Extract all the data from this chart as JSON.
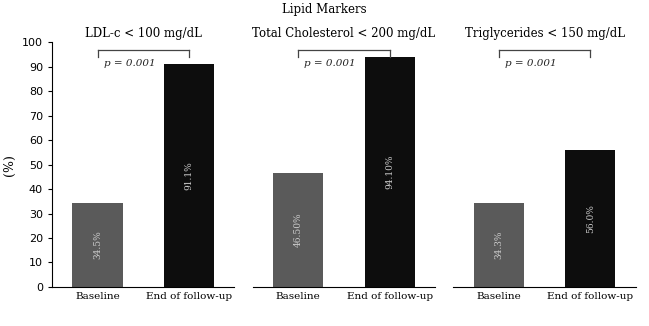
{
  "title": "Lipid Markers",
  "title_fontsize": 8.5,
  "ylabel": "(%)",
  "ylabel_fontsize": 9,
  "ylim": [
    0,
    100
  ],
  "yticks": [
    0,
    10,
    20,
    30,
    40,
    50,
    60,
    70,
    80,
    90,
    100
  ],
  "groups": [
    {
      "subtitle": "LDL-c < 100 mg/dL",
      "baseline_val": 34.5,
      "followup_val": 91.1,
      "baseline_label": "34.5%",
      "followup_label": "91.1%",
      "p_value": "p = 0.001"
    },
    {
      "subtitle": "Total Cholesterol < 200 mg/dL",
      "baseline_val": 46.5,
      "followup_val": 94.1,
      "baseline_label": "46.50%",
      "followup_label": "94.10%",
      "p_value": "p = 0.001"
    },
    {
      "subtitle": "Triglycerides < 150 mg/dL",
      "baseline_val": 34.3,
      "followup_val": 56.0,
      "baseline_label": "34.3%",
      "followup_label": "56.0%",
      "p_value": "p = 0.001"
    }
  ],
  "bar_color_baseline": "#5a5a5a",
  "bar_color_followup": "#0d0d0d",
  "bar_width": 0.55,
  "x_labels": [
    "Baseline",
    "End of follow-up"
  ],
  "background_color": "#ffffff",
  "text_color_bar": "#cccccc",
  "bar_label_fontsize": 6.5,
  "subtitle_fontsize": 8.5,
  "bracket_color": "#444444"
}
